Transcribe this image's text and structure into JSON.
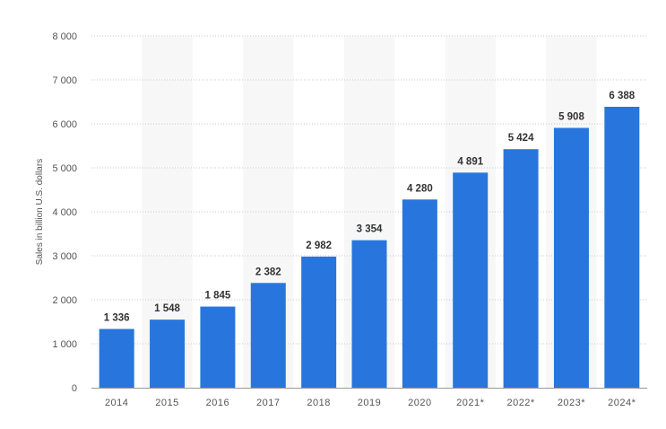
{
  "chart_data": {
    "type": "bar",
    "title": "",
    "xlabel": "",
    "ylabel": "Sales in billion U.S. dollars",
    "ylim": [
      0,
      8000
    ],
    "yticks": [
      0,
      1000,
      2000,
      3000,
      4000,
      5000,
      6000,
      7000,
      8000
    ],
    "ytick_labels": [
      "0",
      "1 000",
      "2 000",
      "3 000",
      "4 000",
      "5 000",
      "6 000",
      "7 000",
      "8 000"
    ],
    "categories": [
      "2014",
      "2015",
      "2016",
      "2017",
      "2018",
      "2019",
      "2020",
      "2021*",
      "2022*",
      "2023*",
      "2024*"
    ],
    "values": [
      1336,
      1548,
      1845,
      2382,
      2982,
      3354,
      4280,
      4891,
      5424,
      5908,
      6388
    ],
    "value_labels": [
      "1 336",
      "1 548",
      "1 845",
      "2 382",
      "2 982",
      "3 354",
      "4 280",
      "4 891",
      "5 424",
      "5 908",
      "6 388"
    ],
    "grid": true,
    "bar_color": "#2876dd",
    "alt_band_color": "#f7f7f7"
  }
}
